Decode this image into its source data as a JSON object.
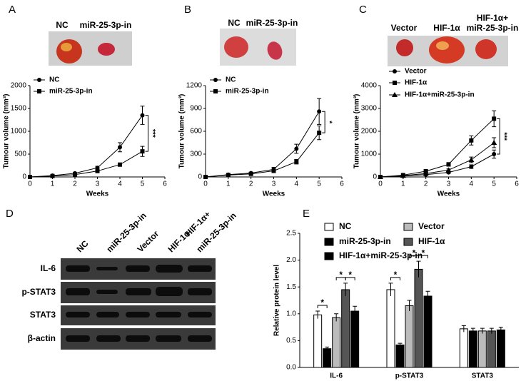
{
  "panel_labels": [
    "A",
    "B",
    "C",
    "D",
    "E"
  ],
  "photos": [
    {
      "labels": [
        "NC",
        "miR-25-3p-in"
      ]
    },
    {
      "labels": [
        "NC",
        "miR-25-3p-in"
      ]
    },
    {
      "labels": [
        "Vector",
        "HIF-1α",
        "HIF-1α+",
        "miR-25-3p-in"
      ]
    }
  ],
  "blot": {
    "columns": [
      "NC",
      "miR-25-3p-in",
      "Vector",
      "HIF-1α",
      "HIF-1α+",
      "miR-25-3p-in"
    ],
    "rows": [
      "IL-6",
      "p-STAT3",
      "STAT3",
      "β-actin"
    ]
  },
  "chart_data": [
    {
      "type": "line",
      "x_label": "Weeks",
      "y_label": "Tumour volume (mm³)",
      "annotation": "***",
      "x": [
        0,
        1,
        2,
        3,
        4,
        5
      ],
      "xlim": [
        0,
        6
      ],
      "xticks": [
        0,
        1,
        2,
        3,
        4,
        5,
        6
      ],
      "ylim": [
        0,
        2000
      ],
      "yticks": [
        0,
        500,
        1000,
        1500,
        2000
      ],
      "series": [
        {
          "name": "NC",
          "color": "#000000",
          "marker": "circle",
          "values": [
            0,
            30,
            80,
            200,
            650,
            1350
          ],
          "errors": [
            0,
            5,
            15,
            35,
            100,
            200
          ]
        },
        {
          "name": "miR-25-3p-in",
          "color": "#000000",
          "marker": "square",
          "values": [
            0,
            20,
            50,
            130,
            270,
            560
          ],
          "errors": [
            0,
            5,
            10,
            20,
            25,
            110
          ]
        }
      ]
    },
    {
      "type": "line",
      "x_label": "Weeks",
      "y_label": "Tumour volume (mm³)",
      "annotation": "*",
      "x": [
        0,
        1,
        2,
        3,
        4,
        5
      ],
      "xlim": [
        0,
        6
      ],
      "xticks": [
        0,
        1,
        2,
        3,
        4,
        5,
        6
      ],
      "ylim": [
        0,
        1200
      ],
      "yticks": [
        0,
        300,
        600,
        900,
        1200
      ],
      "series": [
        {
          "name": "NC",
          "color": "#000000",
          "marker": "circle",
          "values": [
            0,
            30,
            50,
            100,
            370,
            860
          ],
          "errors": [
            0,
            5,
            10,
            25,
            60,
            170
          ]
        },
        {
          "name": "miR-25-3p-in",
          "color": "#000000",
          "marker": "square",
          "values": [
            0,
            25,
            40,
            80,
            200,
            580
          ],
          "errors": [
            0,
            5,
            10,
            20,
            30,
            90
          ]
        }
      ]
    },
    {
      "type": "line",
      "x_label": "Weeks",
      "y_label": "Tumour volume (mm³)",
      "annotation": "***",
      "x": [
        0,
        1,
        2,
        3,
        4,
        5
      ],
      "xlim": [
        0,
        6
      ],
      "xticks": [
        0,
        1,
        2,
        3,
        4,
        5,
        6
      ],
      "ylim": [
        0,
        4000
      ],
      "yticks": [
        0,
        1000,
        2000,
        3000,
        4000
      ],
      "series": [
        {
          "name": "Vector",
          "color": "#000000",
          "marker": "circle",
          "values": [
            0,
            40,
            100,
            200,
            450,
            1000
          ],
          "errors": [
            0,
            10,
            20,
            40,
            80,
            180
          ]
        },
        {
          "name": "HIF-1α",
          "color": "#000000",
          "marker": "square",
          "values": [
            0,
            80,
            250,
            550,
            1600,
            2550
          ],
          "errors": [
            0,
            15,
            40,
            80,
            200,
            350
          ]
        },
        {
          "name": "HIF-1α+miR-25-3p-in",
          "color": "#000000",
          "marker": "triangle",
          "values": [
            0,
            60,
            150,
            300,
            750,
            1500
          ],
          "errors": [
            0,
            10,
            30,
            50,
            120,
            220
          ]
        }
      ]
    },
    {
      "type": "bar",
      "y_label": "Relative protein level",
      "annotations": [
        "*",
        "*",
        "*",
        "*",
        "*",
        "*"
      ],
      "categories": [
        "IL-6",
        "p-STAT3",
        "STAT3"
      ],
      "ylim": [
        0,
        2.5
      ],
      "yticks": [
        {
          "value": 0,
          "label": "0.0"
        },
        0.5,
        {
          "value": 1,
          "label": "1.0"
        },
        1.5,
        {
          "value": 2,
          "label": "2.0"
        },
        2.5
      ],
      "series": [
        {
          "name": "NC",
          "color": "#ffffff",
          "values": [
            0.98,
            1.45,
            0.72
          ],
          "errors": [
            0.07,
            0.12,
            0.06
          ]
        },
        {
          "name": "miR-25-3p-in",
          "color": "#000000",
          "values": [
            0.35,
            0.42,
            0.68
          ],
          "errors": [
            0.03,
            0.03,
            0.05
          ]
        },
        {
          "name": "Vector",
          "color": "#bbbbbb",
          "values": [
            0.93,
            1.15,
            0.68
          ],
          "errors": [
            0.07,
            0.1,
            0.05
          ]
        },
        {
          "name": "HIF-1α",
          "color": "#555555",
          "values": [
            1.45,
            1.83,
            0.68
          ],
          "errors": [
            0.12,
            0.15,
            0.05
          ]
        },
        {
          "name": "HIF-1α+miR-25-3p-in",
          "color": "#000000",
          "values": [
            1.05,
            1.33,
            0.7
          ],
          "errors": [
            0.09,
            0.09,
            0.05
          ]
        }
      ]
    }
  ]
}
